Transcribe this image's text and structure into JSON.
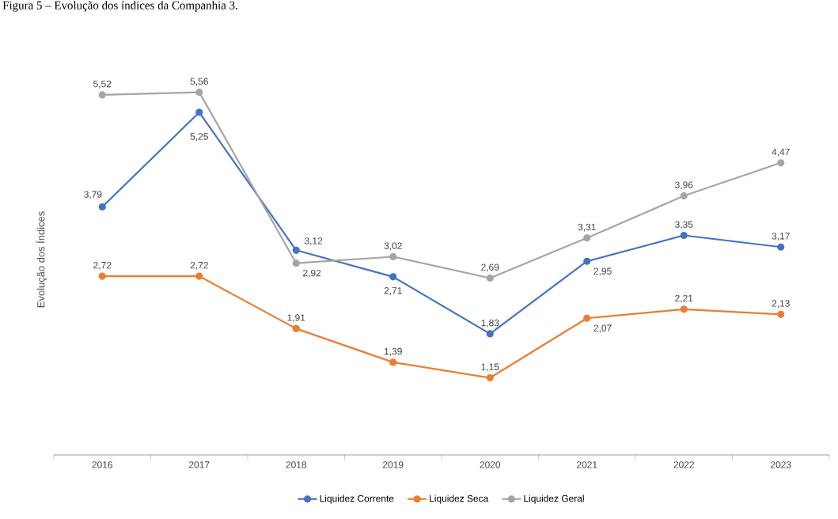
{
  "chart_data": {
    "type": "line",
    "title": "Figura 5 – Evolução dos índices da Companhia 3.",
    "ylabel": "Evolução dos Índices",
    "categories": [
      "2016",
      "2017",
      "2018",
      "2019",
      "2020",
      "2021",
      "2022",
      "2023"
    ],
    "legend": "bottom",
    "marker": "circle",
    "line_style": "solid",
    "series": [
      {
        "name": "Liquidez Corrente",
        "color": "#4472c4",
        "values": [
          3.79,
          5.25,
          3.12,
          2.71,
          1.83,
          2.95,
          3.35,
          3.17
        ],
        "value_labels": [
          "3,79",
          "5,25",
          "3,12",
          "2,71",
          "1,83",
          "2,95",
          "3,35",
          "3,17"
        ]
      },
      {
        "name": "Liquidez Seca",
        "color": "#ed7d31",
        "values": [
          2.72,
          2.72,
          1.91,
          1.39,
          1.15,
          2.07,
          2.21,
          2.13
        ],
        "value_labels": [
          "2,72",
          "2,72",
          "1,91",
          "1,39",
          "1,15",
          "2,07",
          "2,21",
          "2,13"
        ]
      },
      {
        "name": "Liquidez Geral",
        "color": "#a5a5a5",
        "values": [
          5.52,
          5.56,
          2.92,
          3.02,
          2.69,
          3.31,
          3.96,
          4.47
        ],
        "value_labels": [
          "5,52",
          "5,56",
          "2,92",
          "3,02",
          "2,69",
          "3,31",
          "3,96",
          "4,47"
        ]
      }
    ]
  }
}
